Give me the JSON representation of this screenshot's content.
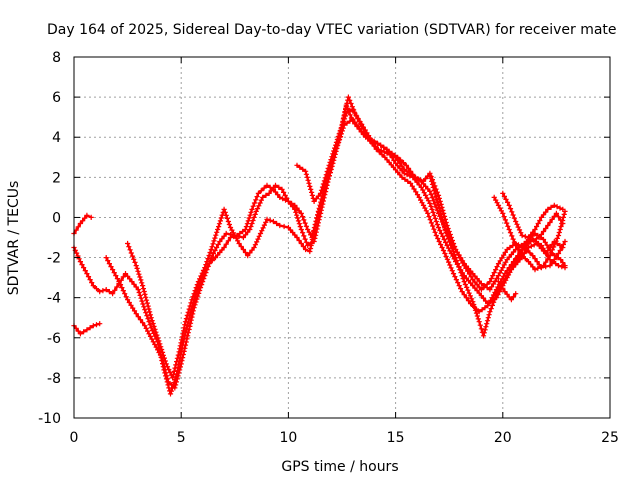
{
  "chart_data": {
    "type": "scatter",
    "title": "Day 164 of 2025, Sidereal Day-to-day VTEC variation (SDTVAR) for receiver mate",
    "xlabel": "GPS time / hours",
    "ylabel": "SDTVAR / TECUs",
    "xlim": [
      0,
      25
    ],
    "ylim": [
      -10,
      8
    ],
    "xticks": [
      0,
      5,
      10,
      15,
      20,
      25
    ],
    "yticks": [
      -10,
      -8,
      -6,
      -4,
      -2,
      0,
      2,
      4,
      6,
      8
    ],
    "grid": true,
    "marker": "plus",
    "color": "#ff0000",
    "series": [
      {
        "values": [
          [
            0,
            -0.8
          ],
          [
            0.3,
            -0.3
          ],
          [
            0.6,
            0.1
          ],
          [
            0.8,
            0.0
          ]
        ]
      },
      {
        "values": [
          [
            0,
            -1.5
          ],
          [
            0.3,
            -2.2
          ],
          [
            0.6,
            -2.8
          ],
          [
            0.9,
            -3.4
          ],
          [
            1.2,
            -3.7
          ],
          [
            1.5,
            -3.6
          ],
          [
            1.8,
            -3.8
          ],
          [
            2.1,
            -3.3
          ],
          [
            2.4,
            -2.8
          ],
          [
            2.7,
            -3.2
          ],
          [
            3.0,
            -3.6
          ],
          [
            3.3,
            -4.6
          ],
          [
            3.6,
            -5.5
          ],
          [
            3.9,
            -6.2
          ],
          [
            4.2,
            -7.6
          ],
          [
            4.5,
            -8.8
          ],
          [
            4.8,
            -7.8
          ],
          [
            5.1,
            -6.2
          ],
          [
            5.4,
            -4.9
          ],
          [
            5.7,
            -3.8
          ],
          [
            6.0,
            -2.9
          ],
          [
            6.3,
            -2.3
          ],
          [
            6.6,
            -2.0
          ],
          [
            7.0,
            -1.5
          ],
          [
            7.3,
            -1.0
          ],
          [
            7.6,
            -0.9
          ],
          [
            8.0,
            -0.6
          ],
          [
            8.3,
            0.4
          ],
          [
            8.6,
            1.2
          ],
          [
            9.0,
            1.6
          ],
          [
            9.3,
            1.4
          ],
          [
            9.6,
            1.0
          ],
          [
            10.0,
            0.8
          ],
          [
            10.3,
            0.6
          ],
          [
            10.6,
            0.2
          ],
          [
            10.9,
            -0.6
          ],
          [
            11.1,
            -1.0
          ],
          [
            11.4,
            0.3
          ],
          [
            11.8,
            2.0
          ],
          [
            12.1,
            3.0
          ],
          [
            12.4,
            4.0
          ],
          [
            12.7,
            5.6
          ],
          [
            13.0,
            4.8
          ],
          [
            13.3,
            4.4
          ],
          [
            13.6,
            4.0
          ],
          [
            14.0,
            3.8
          ],
          [
            14.3,
            3.6
          ],
          [
            14.6,
            3.4
          ],
          [
            15.0,
            2.7
          ],
          [
            15.4,
            2.2
          ],
          [
            15.8,
            2.0
          ],
          [
            16.2,
            1.5
          ],
          [
            16.6,
            0.7
          ],
          [
            17.0,
            -0.5
          ],
          [
            17.4,
            -1.4
          ],
          [
            17.8,
            -2.2
          ],
          [
            18.2,
            -2.9
          ],
          [
            18.6,
            -3.4
          ],
          [
            19.0,
            -3.9
          ],
          [
            19.3,
            -4.3
          ],
          [
            19.7,
            -4.0
          ],
          [
            20.0,
            -3.4
          ],
          [
            20.4,
            -2.6
          ],
          [
            20.8,
            -2.1
          ],
          [
            21.2,
            -1.5
          ],
          [
            21.6,
            -1.3
          ],
          [
            22.0,
            -1.8
          ],
          [
            22.4,
            -1.2
          ],
          [
            22.8,
            -1.5
          ]
        ]
      },
      {
        "values": [
          [
            0,
            -5.4
          ],
          [
            0.3,
            -5.8
          ],
          [
            0.6,
            -5.6
          ],
          [
            0.9,
            -5.4
          ],
          [
            1.2,
            -5.3
          ]
        ]
      },
      {
        "values": [
          [
            1.5,
            -2.0
          ],
          [
            1.8,
            -2.6
          ],
          [
            2.1,
            -3.2
          ],
          [
            2.5,
            -4.1
          ],
          [
            2.9,
            -4.8
          ],
          [
            3.3,
            -5.4
          ],
          [
            3.7,
            -6.2
          ],
          [
            4.1,
            -7.0
          ],
          [
            4.4,
            -8.2
          ],
          [
            4.7,
            -8.5
          ],
          [
            5.0,
            -7.3
          ],
          [
            5.3,
            -5.9
          ],
          [
            5.6,
            -4.5
          ],
          [
            5.9,
            -3.5
          ],
          [
            6.2,
            -2.6
          ],
          [
            6.5,
            -1.8
          ],
          [
            6.8,
            -1.2
          ],
          [
            7.1,
            -0.8
          ],
          [
            7.5,
            -0.9
          ],
          [
            7.9,
            -1.0
          ],
          [
            8.2,
            -0.6
          ],
          [
            8.5,
            0.3
          ],
          [
            8.8,
            1.0
          ],
          [
            9.1,
            1.2
          ],
          [
            9.4,
            1.6
          ],
          [
            9.7,
            1.4
          ],
          [
            10.0,
            0.8
          ],
          [
            10.3,
            0.4
          ],
          [
            10.6,
            -0.6
          ],
          [
            10.9,
            -1.4
          ],
          [
            11.2,
            -1.2
          ],
          [
            11.5,
            0.2
          ],
          [
            11.8,
            1.6
          ],
          [
            12.1,
            3.0
          ],
          [
            12.4,
            4.2
          ],
          [
            12.7,
            5.2
          ],
          [
            13.0,
            5.4
          ],
          [
            13.3,
            4.8
          ],
          [
            13.7,
            4.0
          ],
          [
            14.1,
            3.4
          ],
          [
            14.5,
            3.0
          ],
          [
            14.9,
            2.5
          ],
          [
            15.3,
            2.0
          ],
          [
            15.7,
            1.7
          ],
          [
            16.1,
            1.0
          ],
          [
            16.5,
            0.2
          ],
          [
            16.9,
            -0.9
          ],
          [
            17.3,
            -1.8
          ],
          [
            17.7,
            -2.8
          ],
          [
            18.1,
            -3.7
          ],
          [
            18.5,
            -4.3
          ],
          [
            18.9,
            -4.7
          ],
          [
            19.3,
            -4.4
          ],
          [
            19.7,
            -3.6
          ],
          [
            20.1,
            -2.8
          ],
          [
            20.5,
            -2.2
          ],
          [
            20.9,
            -1.6
          ],
          [
            21.3,
            -1.2
          ],
          [
            21.7,
            -1.0
          ],
          [
            22.1,
            -0.4
          ],
          [
            22.5,
            0.2
          ],
          [
            22.8,
            -0.3
          ]
        ]
      },
      {
        "values": [
          [
            2.5,
            -1.3
          ],
          [
            2.9,
            -2.4
          ],
          [
            3.2,
            -3.4
          ],
          [
            3.6,
            -5.0
          ],
          [
            4.0,
            -6.3
          ],
          [
            4.3,
            -7.3
          ],
          [
            4.6,
            -8.0
          ],
          [
            4.9,
            -6.7
          ],
          [
            5.2,
            -5.2
          ],
          [
            5.5,
            -4.1
          ],
          [
            5.8,
            -3.2
          ],
          [
            6.1,
            -2.5
          ],
          [
            6.4,
            -1.6
          ],
          [
            6.7,
            -0.6
          ],
          [
            7.0,
            0.4
          ],
          [
            7.3,
            -0.5
          ],
          [
            7.7,
            -1.3
          ],
          [
            8.1,
            -1.9
          ],
          [
            8.4,
            -1.5
          ],
          [
            8.7,
            -0.8
          ],
          [
            9.0,
            -0.1
          ],
          [
            9.3,
            -0.2
          ],
          [
            9.6,
            -0.4
          ],
          [
            10.0,
            -0.5
          ],
          [
            10.4,
            -1.0
          ],
          [
            10.8,
            -1.6
          ],
          [
            11.0,
            -1.7
          ],
          [
            11.3,
            -0.2
          ],
          [
            11.7,
            1.3
          ],
          [
            12.0,
            2.4
          ],
          [
            12.3,
            3.6
          ],
          [
            12.6,
            4.6
          ],
          [
            13.0,
            4.9
          ],
          [
            13.4,
            4.3
          ],
          [
            13.8,
            3.8
          ],
          [
            14.2,
            3.4
          ],
          [
            14.6,
            3.2
          ],
          [
            15.0,
            3.0
          ],
          [
            15.4,
            2.4
          ],
          [
            15.8,
            2.1
          ],
          [
            16.2,
            1.8
          ],
          [
            16.6,
            1.3
          ],
          [
            17.0,
            0.2
          ],
          [
            17.4,
            -0.8
          ],
          [
            17.8,
            -1.6
          ],
          [
            18.2,
            -2.3
          ],
          [
            18.6,
            -2.8
          ],
          [
            19.0,
            -3.3
          ],
          [
            19.4,
            -3.6
          ],
          [
            19.8,
            -2.9
          ],
          [
            20.2,
            -2.1
          ],
          [
            20.6,
            -1.6
          ],
          [
            21.0,
            -1.3
          ],
          [
            21.4,
            -1.1
          ],
          [
            21.8,
            -1.4
          ],
          [
            22.2,
            -2.1
          ],
          [
            22.6,
            -2.4
          ],
          [
            22.9,
            -2.5
          ]
        ]
      },
      {
        "values": [
          [
            10.4,
            2.6
          ],
          [
            10.8,
            2.3
          ],
          [
            11.2,
            0.8
          ],
          [
            11.5,
            1.2
          ],
          [
            11.9,
            2.6
          ],
          [
            12.2,
            3.6
          ],
          [
            12.5,
            4.6
          ],
          [
            12.8,
            6.0
          ],
          [
            13.1,
            5.2
          ],
          [
            13.5,
            4.5
          ],
          [
            13.9,
            3.8
          ],
          [
            14.3,
            3.6
          ],
          [
            14.7,
            3.3
          ],
          [
            15.1,
            3.0
          ],
          [
            15.5,
            2.6
          ],
          [
            15.9,
            2.0
          ],
          [
            16.3,
            1.8
          ],
          [
            16.6,
            2.2
          ],
          [
            17.0,
            1.1
          ],
          [
            17.4,
            -0.4
          ],
          [
            17.8,
            -1.6
          ],
          [
            18.2,
            -2.4
          ],
          [
            18.6,
            -3.1
          ],
          [
            19.0,
            -3.6
          ],
          [
            19.4,
            -3.2
          ],
          [
            19.8,
            -2.3
          ],
          [
            20.2,
            -1.6
          ],
          [
            20.6,
            -1.3
          ],
          [
            21.0,
            -1.5
          ],
          [
            21.4,
            -1.9
          ],
          [
            21.8,
            -2.5
          ],
          [
            22.2,
            -2.4
          ],
          [
            22.6,
            -1.8
          ],
          [
            22.9,
            -1.2
          ]
        ]
      },
      {
        "values": [
          [
            16.6,
            2.1
          ],
          [
            17.0,
            0.6
          ],
          [
            17.4,
            -0.9
          ],
          [
            17.8,
            -2.0
          ],
          [
            18.2,
            -3.2
          ],
          [
            18.6,
            -4.2
          ],
          [
            18.9,
            -5.2
          ],
          [
            19.1,
            -5.9
          ],
          [
            19.4,
            -4.7
          ],
          [
            19.8,
            -3.6
          ],
          [
            20.2,
            -2.9
          ],
          [
            20.5,
            -2.4
          ],
          [
            20.8,
            -1.9
          ],
          [
            21.1,
            -1.2
          ],
          [
            21.5,
            -0.8
          ],
          [
            21.9,
            -1.1
          ],
          [
            22.3,
            -1.8
          ],
          [
            22.7,
            -2.1
          ],
          [
            22.9,
            -2.4
          ]
        ]
      },
      {
        "values": [
          [
            19.6,
            1.0
          ],
          [
            20.0,
            0.2
          ],
          [
            20.3,
            -0.6
          ],
          [
            20.6,
            -1.4
          ],
          [
            20.9,
            -1.9
          ],
          [
            21.2,
            -2.2
          ],
          [
            21.5,
            -2.6
          ],
          [
            21.9,
            -2.4
          ],
          [
            22.2,
            -1.9
          ],
          [
            22.6,
            -0.9
          ],
          [
            22.9,
            0.3
          ]
        ]
      },
      {
        "values": [
          [
            20.0,
            1.2
          ],
          [
            20.3,
            0.6
          ],
          [
            20.6,
            -0.2
          ],
          [
            20.9,
            -0.9
          ],
          [
            21.2,
            -1.0
          ],
          [
            21.5,
            -0.6
          ],
          [
            21.8,
            0.0
          ],
          [
            22.1,
            0.4
          ],
          [
            22.4,
            0.6
          ],
          [
            22.8,
            0.4
          ]
        ]
      },
      {
        "values": [
          [
            19.8,
            -3.2
          ],
          [
            20.1,
            -3.7
          ],
          [
            20.4,
            -4.1
          ],
          [
            20.6,
            -3.8
          ]
        ]
      }
    ]
  }
}
